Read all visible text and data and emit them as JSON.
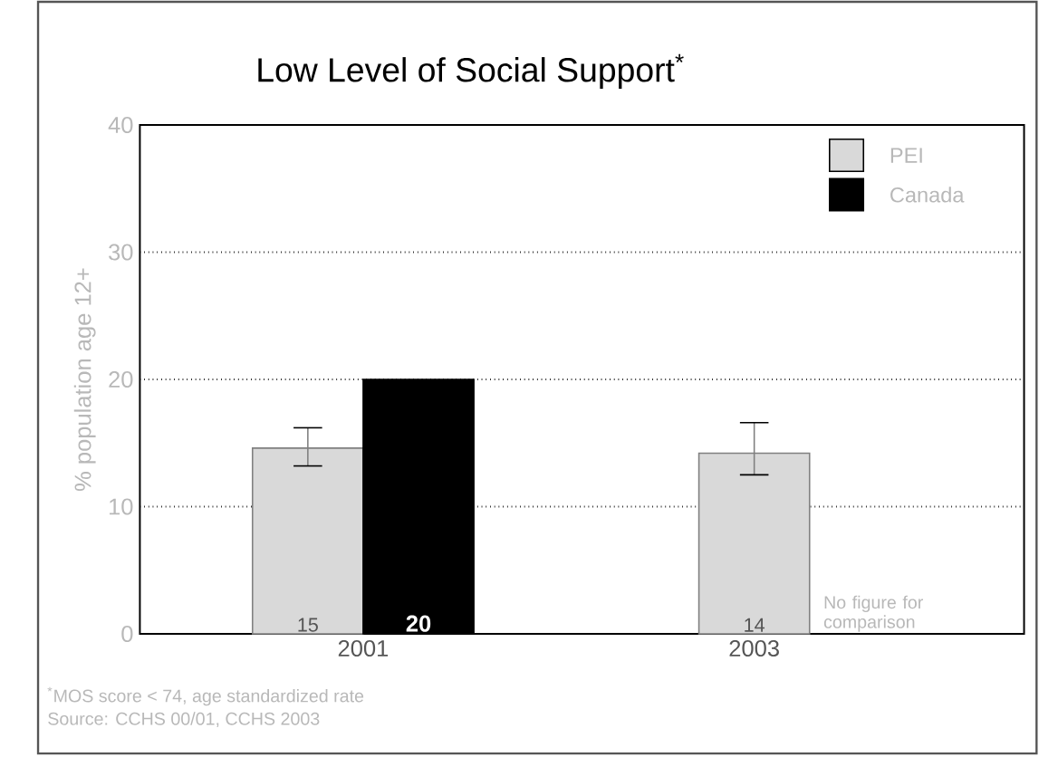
{
  "chart_data": {
    "type": "bar",
    "title": "Low Level of Social Support$^{*}$",
    "categories": [
      "2001",
      "2003"
    ],
    "ylabel": "% population age 12+",
    "ylim": [
      0,
      40
    ],
    "yticks": [
      0,
      10,
      20,
      30,
      40
    ],
    "grid": "y",
    "legend": "top right",
    "series": [
      {
        "name": "PEI",
        "color": "#d9d9d9",
        "values": [
          14.6,
          14.2
        ],
        "errors": [
          [
            13.2,
            16.2
          ],
          [
            12.5,
            16.6
          ]
        ],
        "value_labels": [
          "15",
          "14"
        ]
      },
      {
        "name": "Canada",
        "color": "#000000",
        "values": [
          20,
          null
        ],
        "value_labels": [
          "20",
          null
        ]
      }
    ],
    "annotations": [
      "No figure for comparison",
      "$^{*}$MOS score < 74, age standardized rate",
      "Source: CCHS 00/01, CCHS 2003"
    ]
  }
}
